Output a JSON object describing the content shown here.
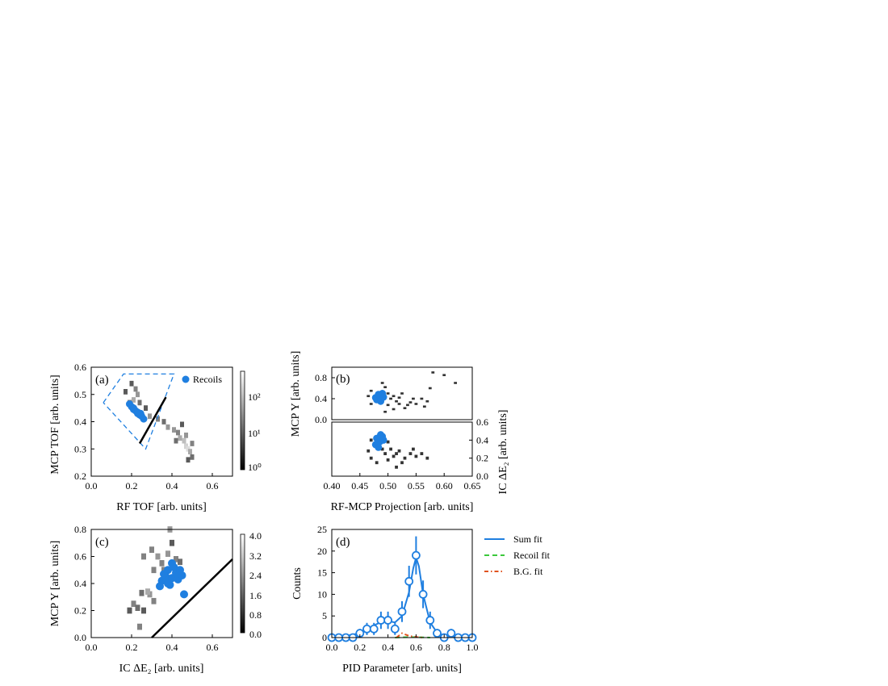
{
  "chart_data": [
    {
      "panel": "(a)",
      "type": "heatmap",
      "xlabel": "RF TOF [arb. units]",
      "ylabel": "MCP TOF [arb. units]",
      "xlim": [
        0.0,
        0.7
      ],
      "ylim": [
        0.2,
        0.6
      ],
      "xticks": [
        "0.0",
        "0.2",
        "0.4",
        "0.6"
      ],
      "yticks": [
        "0.2",
        "0.3",
        "0.4",
        "0.5",
        "0.6"
      ],
      "colorbar": {
        "scale": "log",
        "ticks": [
          "10⁰",
          "10¹",
          "10²"
        ]
      },
      "legend": {
        "entries": [
          "Recoils"
        ],
        "placement": "top-right"
      },
      "gate_polygon": [
        [
          0.06,
          0.47
        ],
        [
          0.16,
          0.575
        ],
        [
          0.41,
          0.575
        ],
        [
          0.27,
          0.3
        ],
        [
          0.06,
          0.47
        ]
      ],
      "cut_line": [
        [
          0.24,
          0.32
        ],
        [
          0.37,
          0.49
        ]
      ],
      "recoils": [
        [
          0.19,
          0.465
        ],
        [
          0.2,
          0.455
        ],
        [
          0.21,
          0.445
        ],
        [
          0.22,
          0.44
        ],
        [
          0.23,
          0.43
        ],
        [
          0.24,
          0.425
        ],
        [
          0.25,
          0.42
        ],
        [
          0.26,
          0.41
        ],
        [
          0.21,
          0.45
        ],
        [
          0.23,
          0.435
        ],
        [
          0.245,
          0.43
        ]
      ],
      "cells": [
        [
          0.2,
          0.54,
          0.3
        ],
        [
          0.22,
          0.52,
          0.5
        ],
        [
          0.23,
          0.5,
          0.6
        ],
        [
          0.21,
          0.48,
          0.7
        ],
        [
          0.19,
          0.47,
          0.5
        ],
        [
          0.24,
          0.47,
          0.4
        ],
        [
          0.27,
          0.45,
          0.3
        ],
        [
          0.29,
          0.42,
          0.6
        ],
        [
          0.33,
          0.41,
          0.5
        ],
        [
          0.36,
          0.4,
          0.4
        ],
        [
          0.38,
          0.38,
          0.6
        ],
        [
          0.41,
          0.37,
          0.6
        ],
        [
          0.43,
          0.36,
          0.5
        ],
        [
          0.44,
          0.34,
          0.7
        ],
        [
          0.46,
          0.33,
          0.8
        ],
        [
          0.47,
          0.31,
          0.9
        ],
        [
          0.48,
          0.3,
          0.95
        ],
        [
          0.49,
          0.29,
          0.7
        ],
        [
          0.47,
          0.35,
          0.6
        ],
        [
          0.5,
          0.27,
          0.4
        ],
        [
          0.45,
          0.39,
          0.3
        ],
        [
          0.48,
          0.26,
          0.3
        ],
        [
          0.5,
          0.32,
          0.5
        ],
        [
          0.42,
          0.33,
          0.4
        ],
        [
          0.17,
          0.51,
          0.3
        ]
      ]
    },
    {
      "panel": "(b)",
      "type": "heatmap",
      "xlabel": "RF-MCP Projection [arb. units]",
      "ylabel_top": "MCP Y [arb. units]",
      "ylabel_bottom": "IC ΔE₂ [arb. units]",
      "xlim": [
        0.4,
        0.65
      ],
      "xticks": [
        "0.40",
        "0.45",
        "0.50",
        "0.55",
        "0.60",
        "0.65"
      ],
      "top": {
        "ylim": [
          0.0,
          1.0
        ],
        "yticks": [
          "0.0",
          "0.4",
          "0.8"
        ],
        "recoils": [
          [
            0.48,
            0.38
          ],
          [
            0.485,
            0.45
          ],
          [
            0.49,
            0.5
          ],
          [
            0.478,
            0.42
          ],
          [
            0.487,
            0.35
          ],
          [
            0.483,
            0.48
          ],
          [
            0.492,
            0.43
          ]
        ],
        "cells": [
          [
            0.465,
            0.45
          ],
          [
            0.47,
            0.3
          ],
          [
            0.49,
            0.7
          ],
          [
            0.495,
            0.62
          ],
          [
            0.5,
            0.28
          ],
          [
            0.505,
            0.4
          ],
          [
            0.51,
            0.2
          ],
          [
            0.515,
            0.35
          ],
          [
            0.52,
            0.3
          ],
          [
            0.525,
            0.5
          ],
          [
            0.53,
            0.22
          ],
          [
            0.54,
            0.33
          ],
          [
            0.545,
            0.4
          ],
          [
            0.55,
            0.3
          ],
          [
            0.56,
            0.4
          ],
          [
            0.57,
            0.35
          ],
          [
            0.58,
            0.9
          ],
          [
            0.6,
            0.85
          ],
          [
            0.495,
            0.15
          ],
          [
            0.51,
            0.45
          ],
          [
            0.52,
            0.42
          ],
          [
            0.535,
            0.28
          ],
          [
            0.565,
            0.25
          ],
          [
            0.575,
            0.6
          ],
          [
            0.62,
            0.7
          ],
          [
            0.47,
            0.55
          ],
          [
            0.5,
            0.5
          ]
        ]
      },
      "bottom": {
        "ylim": [
          0.0,
          0.6
        ],
        "yticks": [
          "0.0",
          "0.2",
          "0.4",
          "0.6"
        ],
        "recoils": [
          [
            0.48,
            0.42
          ],
          [
            0.485,
            0.38
          ],
          [
            0.49,
            0.44
          ],
          [
            0.478,
            0.35
          ],
          [
            0.487,
            0.46
          ],
          [
            0.483,
            0.32
          ],
          [
            0.492,
            0.4
          ]
        ],
        "cells": [
          [
            0.465,
            0.28
          ],
          [
            0.47,
            0.2
          ],
          [
            0.49,
            0.3
          ],
          [
            0.495,
            0.25
          ],
          [
            0.5,
            0.18
          ],
          [
            0.505,
            0.3
          ],
          [
            0.51,
            0.22
          ],
          [
            0.515,
            0.25
          ],
          [
            0.52,
            0.28
          ],
          [
            0.525,
            0.15
          ],
          [
            0.53,
            0.2
          ],
          [
            0.54,
            0.25
          ],
          [
            0.545,
            0.3
          ],
          [
            0.55,
            0.22
          ],
          [
            0.56,
            0.25
          ],
          [
            0.57,
            0.2
          ],
          [
            0.5,
            0.38
          ],
          [
            0.515,
            0.1
          ],
          [
            0.47,
            0.4
          ],
          [
            0.48,
            0.15
          ]
        ]
      }
    },
    {
      "panel": "(c)",
      "type": "heatmap",
      "xlabel": "IC ΔE₂ [arb. units]",
      "ylabel": "MCP Y [arb. units]",
      "xlim": [
        0.0,
        0.7
      ],
      "ylim": [
        0.0,
        0.8
      ],
      "xticks": [
        "0.0",
        "0.2",
        "0.4",
        "0.6"
      ],
      "yticks": [
        "0.0",
        "0.2",
        "0.4",
        "0.6",
        "0.8"
      ],
      "colorbar": {
        "scale": "linear",
        "ticks": [
          "0.0",
          "0.8",
          "1.6",
          "2.4",
          "3.2",
          "4.0"
        ]
      },
      "cut_line": [
        [
          0.3,
          0.0
        ],
        [
          0.7,
          0.58
        ]
      ],
      "recoils": [
        [
          0.35,
          0.42
        ],
        [
          0.37,
          0.45
        ],
        [
          0.38,
          0.5
        ],
        [
          0.4,
          0.44
        ],
        [
          0.42,
          0.48
        ],
        [
          0.39,
          0.39
        ],
        [
          0.41,
          0.52
        ],
        [
          0.43,
          0.43
        ],
        [
          0.36,
          0.47
        ],
        [
          0.4,
          0.55
        ],
        [
          0.45,
          0.46
        ],
        [
          0.34,
          0.38
        ],
        [
          0.38,
          0.4
        ],
        [
          0.44,
          0.5
        ],
        [
          0.46,
          0.32
        ]
      ],
      "cells": [
        [
          0.26,
          0.6,
          0.5
        ],
        [
          0.3,
          0.65,
          0.5
        ],
        [
          0.33,
          0.6,
          0.6
        ],
        [
          0.35,
          0.55,
          0.5
        ],
        [
          0.38,
          0.62,
          0.6
        ],
        [
          0.4,
          0.7,
          0.3
        ],
        [
          0.42,
          0.58,
          0.5
        ],
        [
          0.44,
          0.56,
          0.4
        ],
        [
          0.31,
          0.5,
          0.5
        ],
        [
          0.36,
          0.5,
          0.5
        ],
        [
          0.25,
          0.33,
          0.4
        ],
        [
          0.29,
          0.32,
          0.6
        ],
        [
          0.31,
          0.27,
          0.5
        ],
        [
          0.19,
          0.2,
          0.3
        ],
        [
          0.21,
          0.25,
          0.5
        ],
        [
          0.23,
          0.22,
          0.4
        ],
        [
          0.26,
          0.2,
          0.3
        ],
        [
          0.24,
          0.08,
          0.5
        ],
        [
          0.28,
          0.34,
          0.7
        ],
        [
          0.39,
          0.8,
          0.6
        ]
      ]
    },
    {
      "panel": "(d)",
      "type": "line",
      "xlabel": "PID Parameter [arb. units]",
      "ylabel": "Counts",
      "xlim": [
        0.0,
        1.0
      ],
      "ylim": [
        0,
        25
      ],
      "xticks": [
        "0.0",
        "0.2",
        "0.4",
        "0.6",
        "0.8",
        "1.0"
      ],
      "yticks": [
        "0",
        "5",
        "10",
        "15",
        "20",
        "25"
      ],
      "legend": {
        "entries": [
          "Sum fit",
          "Recoil fit",
          "B.G. fit"
        ],
        "placement": "outside-right"
      },
      "histogram": {
        "x": [
          0.0,
          0.05,
          0.1,
          0.15,
          0.2,
          0.25,
          0.3,
          0.35,
          0.4,
          0.45,
          0.5,
          0.55,
          0.6,
          0.65,
          0.7,
          0.75,
          0.8,
          0.85,
          0.9,
          0.95,
          1.0
        ],
        "y": [
          0,
          0,
          0,
          0,
          1,
          2,
          2,
          4,
          4,
          2,
          6,
          13,
          19,
          10,
          4,
          1,
          0,
          1,
          0,
          0,
          0
        ],
        "yerr": [
          0,
          0,
          0,
          0,
          1,
          1.4,
          1.4,
          2,
          2,
          1.4,
          2.4,
          3.6,
          4.4,
          3.2,
          2,
          1,
          0,
          1,
          0,
          0,
          0
        ]
      },
      "series": [
        {
          "name": "Sum fit",
          "color": "#1f7fe0",
          "style": "solid",
          "x": [
            0.0,
            0.1,
            0.2,
            0.25,
            0.3,
            0.35,
            0.4,
            0.45,
            0.5,
            0.55,
            0.58,
            0.6,
            0.62,
            0.65,
            0.7,
            0.75,
            0.8,
            0.9,
            1.0
          ],
          "y": [
            0.1,
            0.4,
            1.0,
            1.8,
            2.8,
            3.6,
            3.8,
            3.5,
            5.0,
            10.5,
            16.0,
            18.5,
            16.5,
            10.0,
            3.5,
            1.1,
            0.5,
            0.1,
            0.0
          ]
        },
        {
          "name": "Recoil fit",
          "color": "#3cc83c",
          "style": "dashed",
          "x": [
            0.45,
            0.5,
            0.55,
            0.6,
            0.65,
            0.7
          ],
          "y": [
            0.0,
            0.05,
            0.1,
            0.1,
            0.05,
            0.0
          ]
        },
        {
          "name": "B.G. fit",
          "color": "#e0521e",
          "style": "dashdot",
          "x": [
            0.46,
            0.5,
            0.55,
            0.6,
            0.65
          ],
          "y": [
            0.0,
            1.0,
            0.4,
            0.15,
            0.0
          ]
        }
      ]
    }
  ],
  "colors": {
    "recoil": "#1f7fe0",
    "recoil_fit": "#3cc83c",
    "bg_fit": "#e0521e"
  }
}
